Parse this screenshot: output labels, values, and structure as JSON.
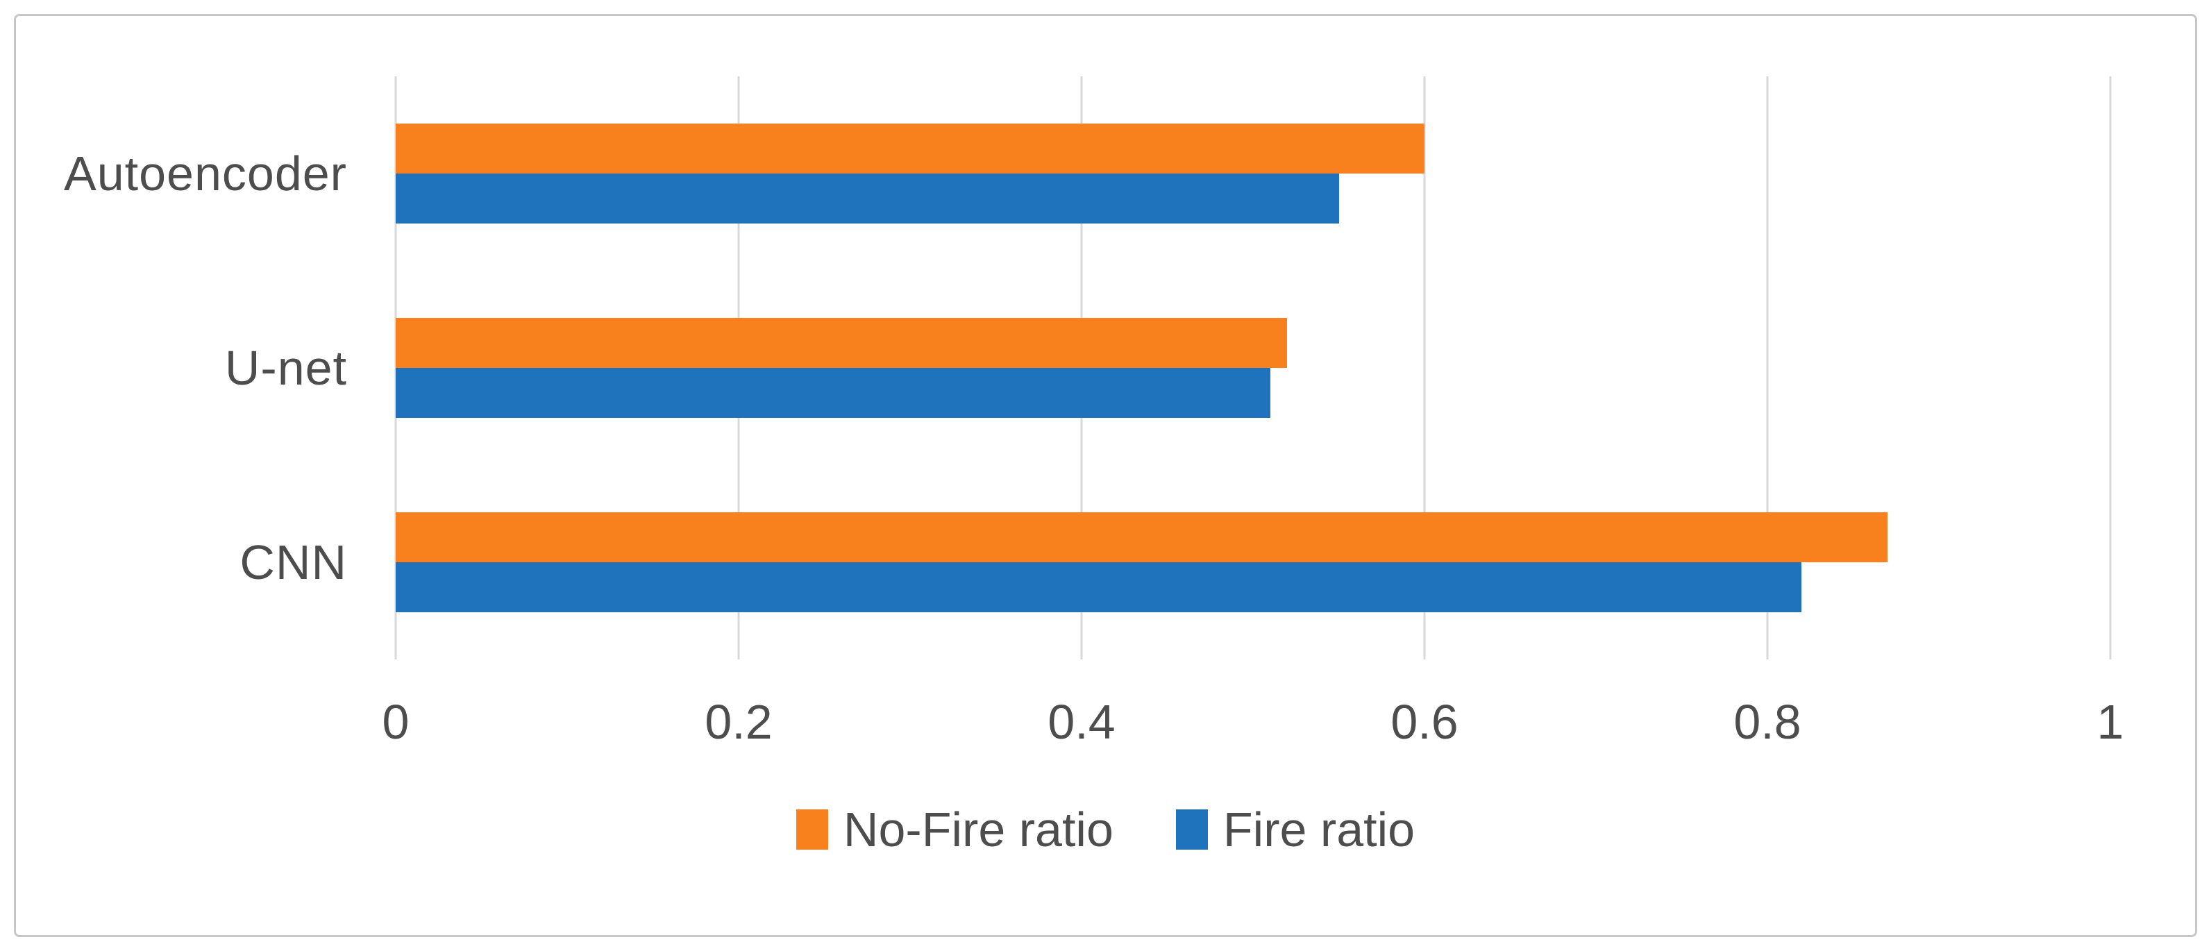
{
  "figure": {
    "background": "#FFFFFF",
    "border_color": "#C8C8C8"
  },
  "chart_data": {
    "type": "bar",
    "orientation": "horizontal",
    "categories": [
      "Autoencoder",
      "U-net",
      "CNN"
    ],
    "series": [
      {
        "name": "No-Fire ratio",
        "color": "#F8811E",
        "values": [
          0.6,
          0.52,
          0.87
        ]
      },
      {
        "name": "Fire ratio",
        "color": "#1F72BC",
        "values": [
          0.55,
          0.51,
          0.82
        ]
      }
    ],
    "xlim": [
      0,
      1
    ],
    "x_ticks": [
      {
        "value": 0,
        "label": "0"
      },
      {
        "value": 0.2,
        "label": "0.2"
      },
      {
        "value": 0.4,
        "label": "0.4"
      },
      {
        "value": 0.6,
        "label": "0.6"
      },
      {
        "value": 0.8,
        "label": "0.8"
      },
      {
        "value": 1,
        "label": "1"
      }
    ],
    "grid": true,
    "gridline_color": "#D9D9D9",
    "text_color": "#4D4D4D",
    "legend_position": "bottom",
    "legend": [
      "No-Fire ratio",
      "Fire ratio"
    ]
  }
}
